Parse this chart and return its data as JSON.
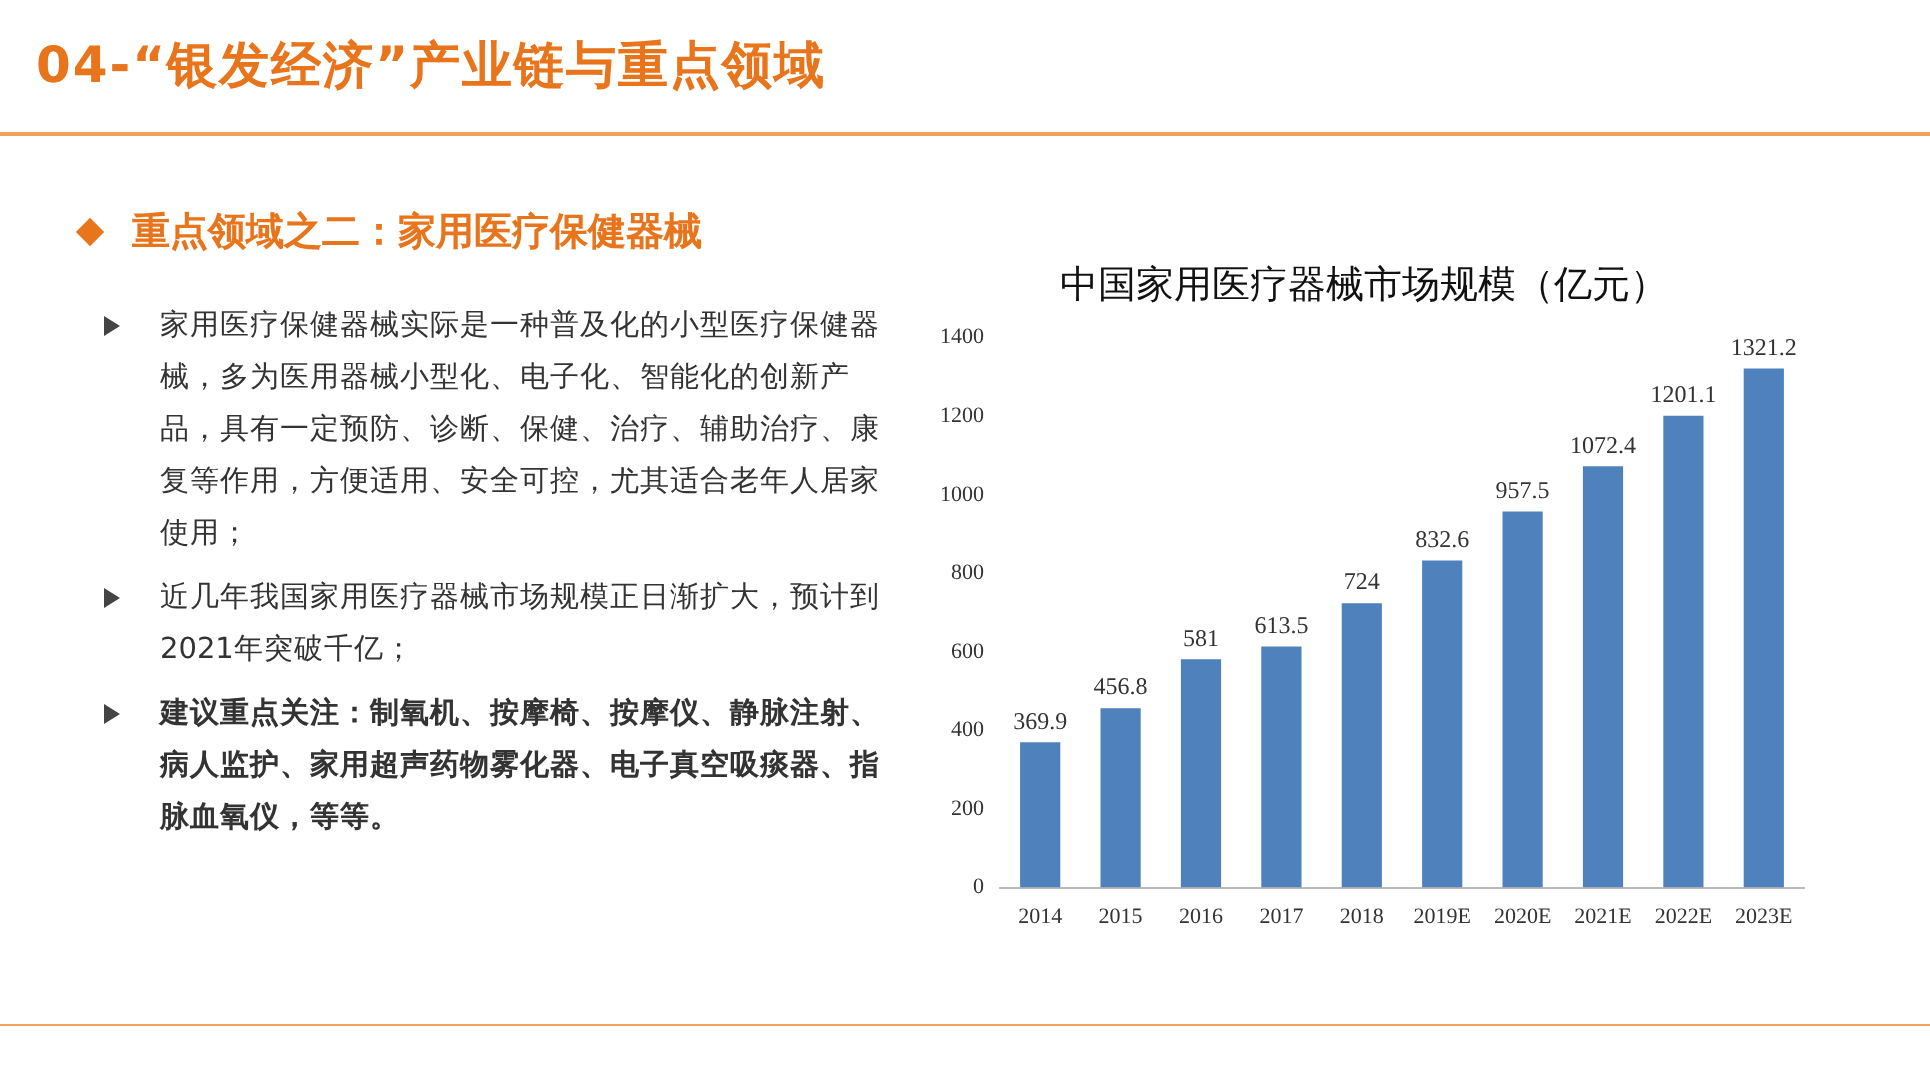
{
  "chart_data": {
    "type": "bar",
    "title": "中国家用医疗器械市场规模（亿元）",
    "categories": [
      "2014",
      "2015",
      "2016",
      "2017",
      "2018",
      "2019E",
      "2020E",
      "2021E",
      "2022E",
      "2023E"
    ],
    "values": [
      369.9,
      456.8,
      581,
      613.5,
      724,
      832.6,
      957.5,
      1072.4,
      1201.1,
      1321.2
    ],
    "color": "#4f81bd",
    "ylim": [
      0,
      1400
    ],
    "yticks": [
      0,
      200,
      400,
      600,
      800,
      1000,
      1200,
      1400
    ],
    "grid": false,
    "data_labels": true,
    "annotations": [
      "04-“银发经济”产业链与重点领域",
      "重点领域之二：家用医疗保健器械",
      "家用医疗保健器械实际是一种普及化的小型医疗保健器械，多为医用器械小型化、电子化、智能化的创新产品，具有一定预防、诊断、保健、治疗、辅助治疗、康复等作用，方便适用、安全可控，尤其适合老年人居家使用；",
      "近几年我国家用医疗器械市场规模正日渐扩大，预计到2021年突破千亿；",
      "建议重点关注：制氧机、按摩椅、按摩仪、静脉注射、病人监护、家用超声药物雾化器、电子真空吸痰器、指脉血氧仪，等等。"
    ]
  }
}
